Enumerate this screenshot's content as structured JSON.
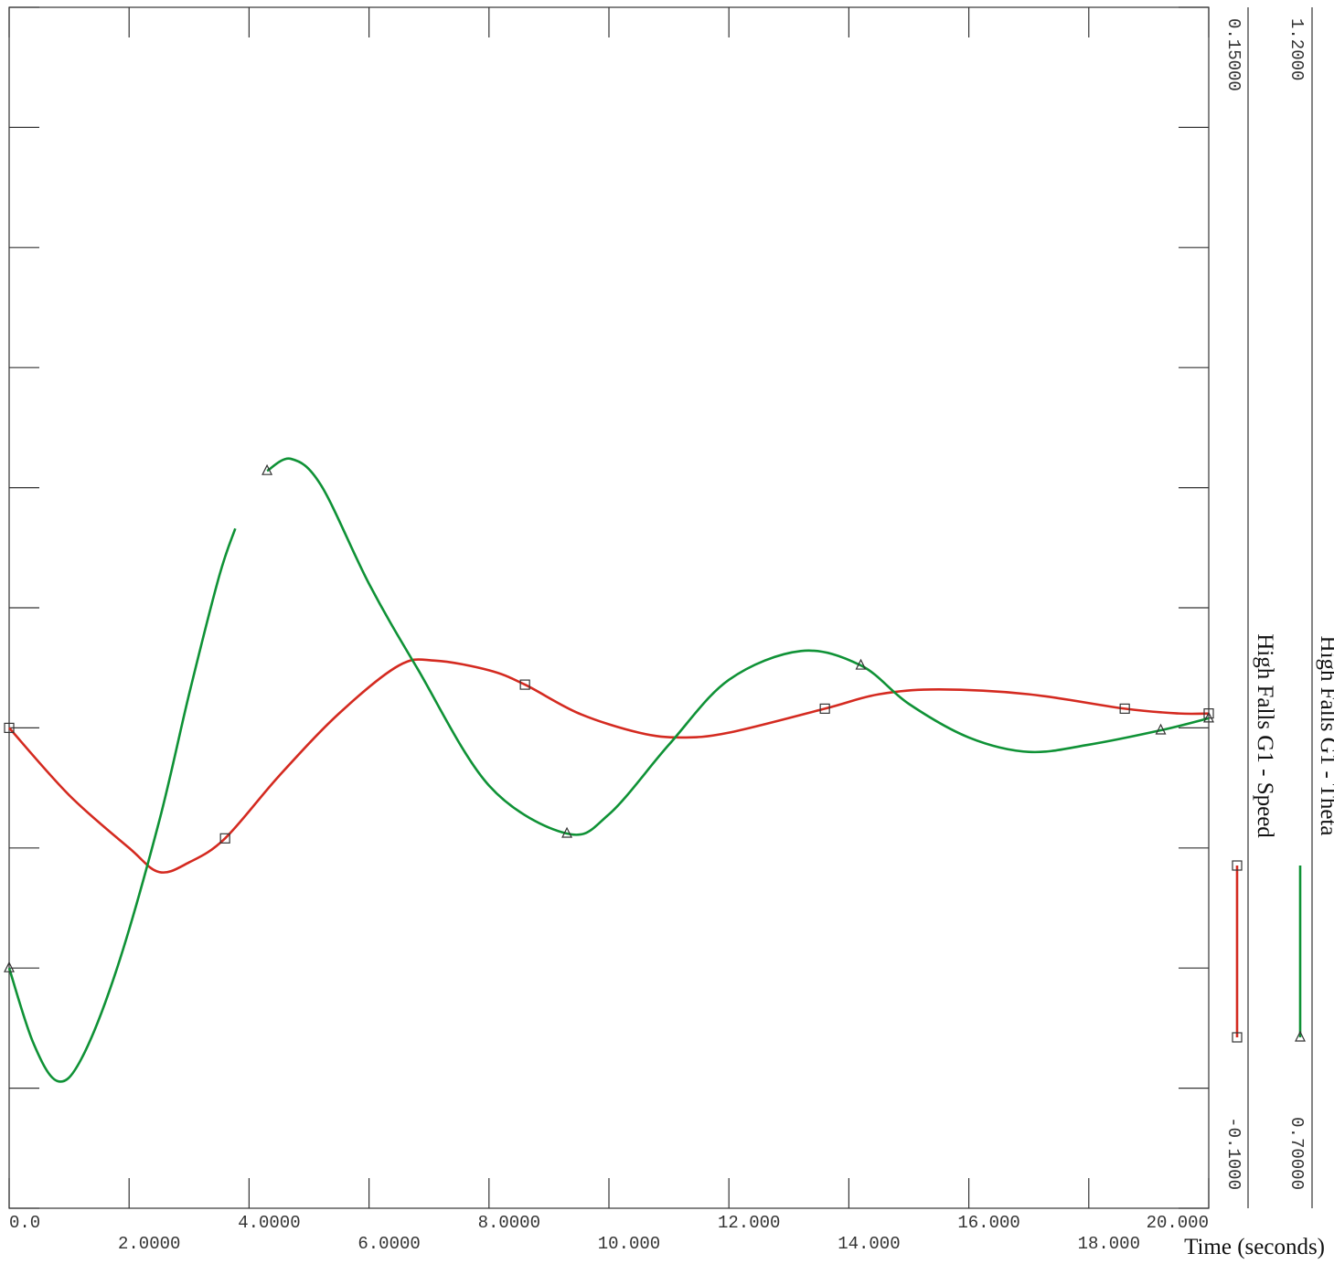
{
  "chart_data": {
    "type": "line",
    "x_label": "Time (seconds)",
    "xlim": [
      0,
      20
    ],
    "xticks": [
      {
        "value": 0,
        "label": "0.0"
      },
      {
        "value": 2,
        "label": "2.0000"
      },
      {
        "value": 4,
        "label": "4.0000"
      },
      {
        "value": 6,
        "label": "6.0000"
      },
      {
        "value": 8,
        "label": "8.0000"
      },
      {
        "value": 10,
        "label": "10.000"
      },
      {
        "value": 12,
        "label": "12.000"
      },
      {
        "value": 14,
        "label": "14.000"
      },
      {
        "value": 16,
        "label": "16.000"
      },
      {
        "value": 18,
        "label": "18.000"
      },
      {
        "value": 20,
        "label": "20.000"
      }
    ],
    "ylim": [
      -0.1,
      0.15
    ],
    "ylim_labels": [
      "-0.1000",
      "0.15000"
    ],
    "yticks": [
      -0.1,
      -0.075,
      -0.05,
      -0.025,
      0,
      0.025,
      0.05,
      0.075,
      0.1,
      0.125,
      0.15
    ],
    "y2lim": [
      0.7,
      1.2
    ],
    "y2lim_labels": [
      "0.70000",
      "1.2000"
    ],
    "series": [
      {
        "name": "High Falls G1 - Speed",
        "color": "#d42a20",
        "marker": "square",
        "x": [
          0,
          1,
          2,
          2.5,
          3,
          3.6,
          4.5,
          5.5,
          6.5,
          7.1,
          8,
          8.6,
          9.5,
          10.5,
          11.2,
          12,
          13.6,
          14.5,
          15.5,
          17,
          18.6,
          19.5,
          20
        ],
        "values": [
          0.0,
          -0.014,
          -0.025,
          -0.03,
          -0.028,
          -0.023,
          -0.01,
          0.003,
          0.013,
          0.014,
          0.012,
          0.009,
          0.003,
          -0.001,
          -0.002,
          -0.001,
          0.004,
          0.007,
          0.008,
          0.007,
          0.004,
          0.003,
          0.003
        ],
        "markers": [
          0,
          3.6,
          8.6,
          13.6,
          18.6,
          20
        ]
      },
      {
        "name": "High Falls G1 - Theta",
        "color": "#0f9236",
        "marker": "triangle",
        "axis": "y2",
        "x": [
          0,
          0.4,
          0.8,
          1.2,
          1.8,
          2.5,
          3,
          3.5,
          3.77,
          4,
          4.3,
          4.7,
          5.2,
          6,
          6.8,
          8,
          9.3,
          10,
          11,
          12,
          13.2,
          14.2,
          15,
          16,
          17,
          18,
          19.2,
          20
        ],
        "values": [
          0.8,
          0.769,
          0.753,
          0.762,
          0.8,
          0.861,
          0.914,
          0.963,
          0.983,
          null,
          1.007,
          1.012,
          1.001,
          0.96,
          0.925,
          0.876,
          0.856,
          0.864,
          0.893,
          0.92,
          0.932,
          0.926,
          0.91,
          0.896,
          0.89,
          0.893,
          0.899,
          0.904
        ],
        "markers": [
          0,
          4.3,
          9.3,
          14.2,
          19.2,
          20
        ]
      }
    ]
  }
}
